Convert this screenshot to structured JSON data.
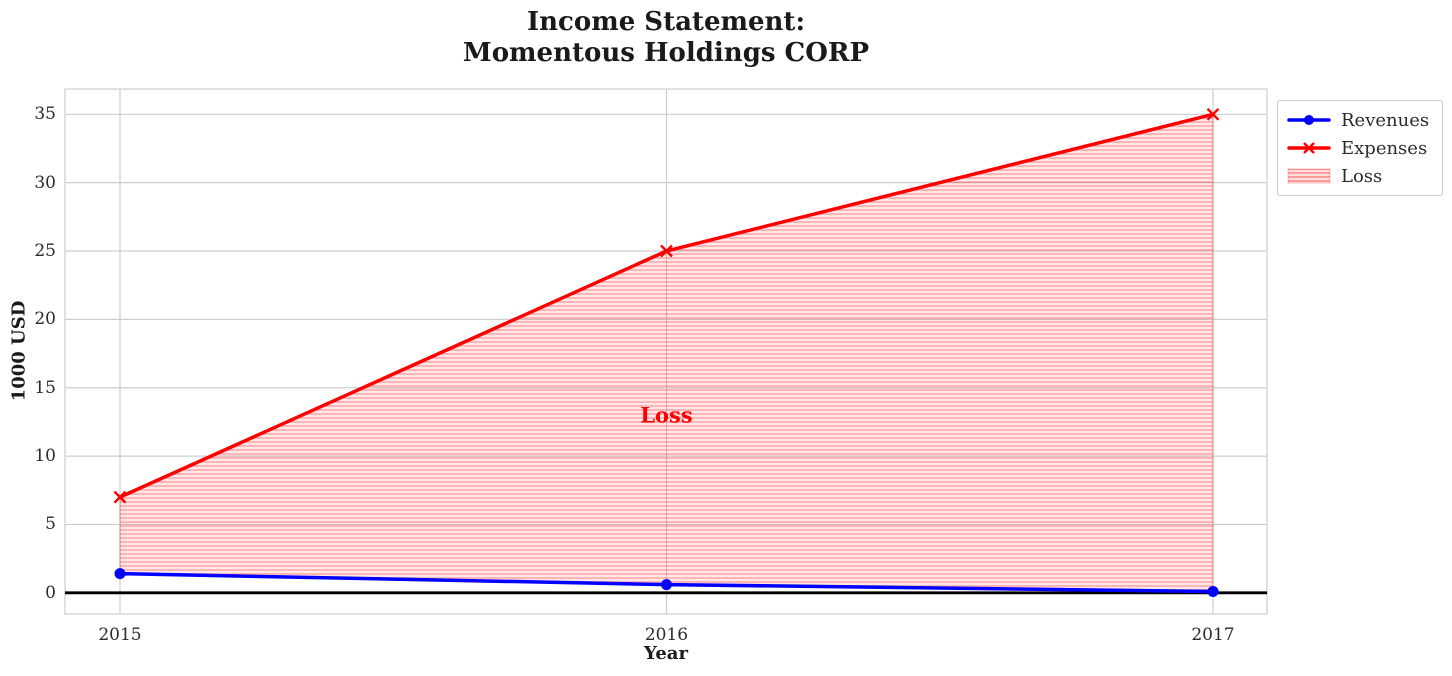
{
  "chart_data": {
    "type": "line",
    "title": "Income Statement:\nMomentous Holdings CORP",
    "xlabel": "Year",
    "ylabel": "1000 USD",
    "categories": [
      "2015",
      "2016",
      "2017"
    ],
    "series": [
      {
        "name": "Revenues",
        "values": [
          1.4,
          0.6,
          0.1
        ],
        "color": "#0000ff",
        "marker": "circle"
      },
      {
        "name": "Expenses",
        "values": [
          7,
          25,
          35
        ],
        "color": "#ff0000",
        "marker": "x"
      }
    ],
    "fill_between": {
      "label": "Loss",
      "upper": "Expenses",
      "lower": "Revenues",
      "hatch": "horizontal",
      "color": "#ff0000"
    },
    "annotations": [
      {
        "text": "Loss",
        "x": "2016",
        "y": 13,
        "color": "#ff0000"
      }
    ],
    "yticks": [
      0,
      5,
      10,
      15,
      20,
      25,
      30,
      35
    ],
    "ylim": [
      -1.55,
      36.85
    ],
    "zero_line": {
      "y": 0,
      "color": "#000000"
    },
    "grid": true,
    "grid_color": "#cdcdcd",
    "border_color": "#d4d4d4",
    "legend_position": "upper-right-outside"
  }
}
